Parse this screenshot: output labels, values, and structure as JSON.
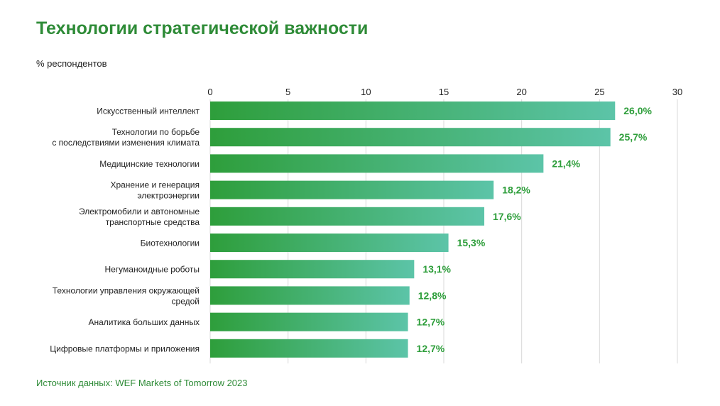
{
  "title": "Технологии стратегической важности",
  "subtitle": "% респондентов",
  "source": "Источник данных: WEF Markets of Tomorrow 2023",
  "colors": {
    "title": "#2e8b37",
    "bar_start": "#2e9e3b",
    "bar_end": "#5cc4a8",
    "value_label": "#2e9e3b",
    "grid": "#d9d9d9",
    "text": "#222222"
  },
  "chart_data": {
    "type": "bar",
    "orientation": "horizontal",
    "title": "Технологии стратегической важности",
    "xlabel": "% респондентов",
    "ylabel": "",
    "xlim": [
      0,
      30
    ],
    "ticks": [
      0,
      5,
      10,
      15,
      20,
      25,
      30
    ],
    "grid": true,
    "categories": [
      [
        "Искусственный интеллект"
      ],
      [
        "Технологии по борьбе",
        "с последствиями изменения климата"
      ],
      [
        "Медицинские технологии"
      ],
      [
        "Хранение и генерация",
        "электроэнергии"
      ],
      [
        "Электромобили и автономные",
        "транспортные средства"
      ],
      [
        "Биотехнологии"
      ],
      [
        "Негуманоидные роботы"
      ],
      [
        "Технологии управления окружающей",
        "средой"
      ],
      [
        "Аналитика больших данных"
      ],
      [
        "Цифровые платформы и приложения"
      ]
    ],
    "values": [
      26.0,
      25.7,
      21.4,
      18.2,
      17.6,
      15.3,
      13.1,
      12.8,
      12.7,
      12.7
    ],
    "value_labels": [
      "26,0%",
      "25,7%",
      "21,4%",
      "18,2%",
      "17,6%",
      "15,3%",
      "13,1%",
      "12,8%",
      "12,7%",
      "12,7%"
    ]
  }
}
